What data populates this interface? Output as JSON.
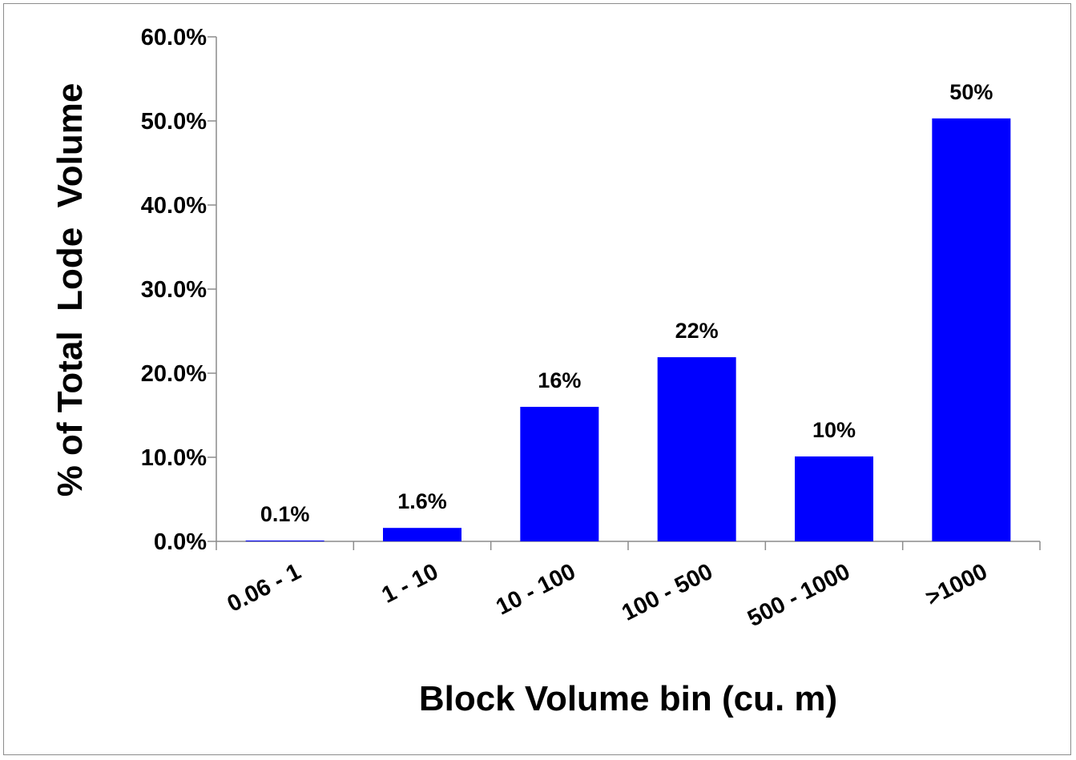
{
  "chart_data": {
    "type": "bar",
    "title": "",
    "xlabel": "Block Volume bin (cu. m)",
    "ylabel": "% of Total  Lode  Volume",
    "categories": [
      "0.06 - 1",
      "1 - 10",
      "10 - 100",
      "100 - 500",
      "500 - 1000",
      ">1000"
    ],
    "values": [
      0.1,
      1.6,
      16,
      21.9,
      10.1,
      50.3
    ],
    "data_labels": [
      "0.1%",
      "1.6%",
      "16%",
      "22%",
      "10%",
      "50%"
    ],
    "ylim": [
      0,
      60
    ],
    "yticks": [
      "0.0%",
      "10.0%",
      "20.0%",
      "30.0%",
      "40.0%",
      "50.0%",
      "60.0%"
    ],
    "bar_color": "#0000ff",
    "grid": false,
    "legend": "none"
  }
}
